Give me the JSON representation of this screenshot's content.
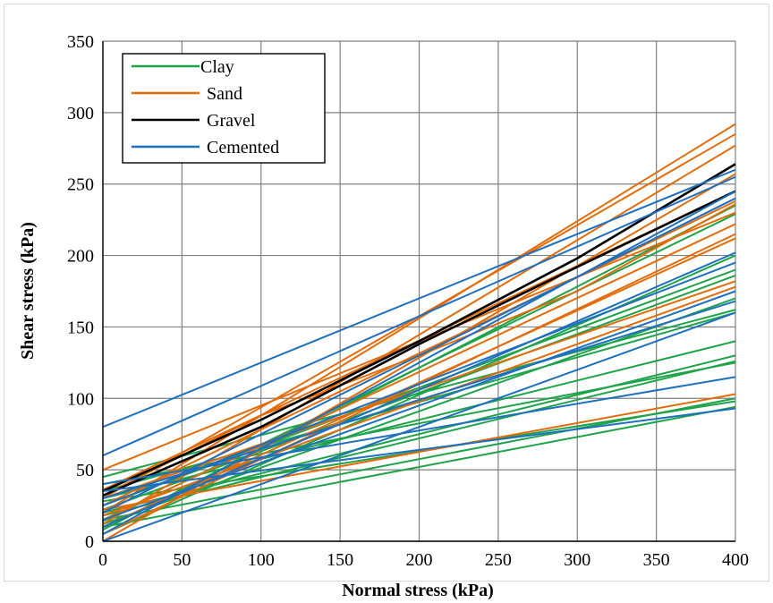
{
  "chart_data": {
    "type": "line",
    "title": "",
    "xlabel": "Normal stress (kPa)",
    "ylabel": "Shear stress (kPa)",
    "xlim": [
      0,
      400
    ],
    "ylim": [
      0,
      350
    ],
    "xticks": [
      0,
      50,
      100,
      150,
      200,
      250,
      300,
      350,
      400
    ],
    "yticks": [
      0,
      50,
      100,
      150,
      200,
      250,
      300,
      350
    ],
    "grid": true,
    "legend_position": "top-left",
    "series": [
      {
        "name": "Clay",
        "color": "#1fa34a",
        "lines": [
          [
            [
              0,
              45
            ],
            [
              400,
              162
            ]
          ],
          [
            [
              0,
              30
            ],
            [
              400,
              140
            ]
          ],
          [
            [
              0,
              20
            ],
            [
              400,
              130
            ]
          ],
          [
            [
              0,
              18
            ],
            [
              400,
              126
            ]
          ],
          [
            [
              0,
              15
            ],
            [
              400,
              100
            ]
          ],
          [
            [
              0,
              10
            ],
            [
              400,
              94
            ]
          ],
          [
            [
              0,
              22
            ],
            [
              400,
              186
            ]
          ],
          [
            [
              0,
              12
            ],
            [
              400,
              170
            ]
          ],
          [
            [
              0,
              35
            ],
            [
              400,
              160
            ]
          ],
          [
            [
              0,
              25
            ],
            [
              400,
              190
            ]
          ],
          [
            [
              0,
              8
            ],
            [
              400,
              235
            ]
          ],
          [
            [
              0,
              14
            ],
            [
              400,
              229
            ]
          ],
          [
            [
              0,
              28
            ],
            [
              400,
              98
            ]
          ],
          [
            [
              0,
              5
            ],
            [
              400,
              200
            ]
          ],
          [
            [
              0,
              40
            ],
            [
              400,
              125
            ]
          ]
        ]
      },
      {
        "name": "Sand",
        "color": "#e36c0a",
        "lines": [
          [
            [
              0,
              20
            ],
            [
              400,
              292
            ]
          ],
          [
            [
              0,
              30
            ],
            [
              400,
              285
            ]
          ],
          [
            [
              0,
              12
            ],
            [
              400,
              277
            ]
          ],
          [
            [
              0,
              0
            ],
            [
              400,
              257
            ]
          ],
          [
            [
              0,
              36
            ],
            [
              400,
              245
            ]
          ],
          [
            [
              0,
              25
            ],
            [
              400,
              238
            ]
          ],
          [
            [
              0,
              50
            ],
            [
              400,
              230
            ]
          ],
          [
            [
              0,
              15
            ],
            [
              400,
              222
            ]
          ],
          [
            [
              0,
              5
            ],
            [
              400,
              215
            ]
          ],
          [
            [
              0,
              10
            ],
            [
              400,
              212
            ]
          ],
          [
            [
              0,
              30
            ],
            [
              400,
              182
            ]
          ],
          [
            [
              0,
              18
            ],
            [
              400,
              178
            ]
          ],
          [
            [
              0,
              22
            ],
            [
              400,
              103
            ]
          ],
          [
            [
              0,
              32
            ],
            [
              100,
              88
            ],
            [
              200,
              130
            ],
            [
              300,
              175
            ],
            [
              400,
              236
            ]
          ]
        ]
      },
      {
        "name": "Gravel",
        "color": "#000000",
        "lines": [
          [
            [
              0,
              35
            ],
            [
              100,
              85
            ],
            [
              200,
              140
            ],
            [
              300,
              198
            ],
            [
              400,
              264
            ]
          ],
          [
            [
              0,
              32
            ],
            [
              100,
              80
            ],
            [
              200,
              138
            ],
            [
              300,
              192
            ],
            [
              400,
              245
            ]
          ]
        ]
      },
      {
        "name": "Cemented",
        "color": "#1f6fbf",
        "lines": [
          [
            [
              0,
              80
            ],
            [
              400,
              260
            ]
          ],
          [
            [
              0,
              60
            ],
            [
              400,
              255
            ]
          ],
          [
            [
              0,
              5
            ],
            [
              400,
              245
            ]
          ],
          [
            [
              0,
              20
            ],
            [
              400,
              240
            ]
          ],
          [
            [
              0,
              10
            ],
            [
              400,
              202
            ]
          ],
          [
            [
              0,
              25
            ],
            [
              400,
              195
            ]
          ],
          [
            [
              0,
              15
            ],
            [
              400,
              175
            ]
          ],
          [
            [
              0,
              30
            ],
            [
              400,
              168
            ]
          ],
          [
            [
              0,
              40
            ],
            [
              400,
              115
            ]
          ],
          [
            [
              0,
              35
            ],
            [
              400,
              93
            ]
          ],
          [
            [
              0,
              0
            ],
            [
              400,
              160
            ]
          ]
        ]
      }
    ]
  }
}
